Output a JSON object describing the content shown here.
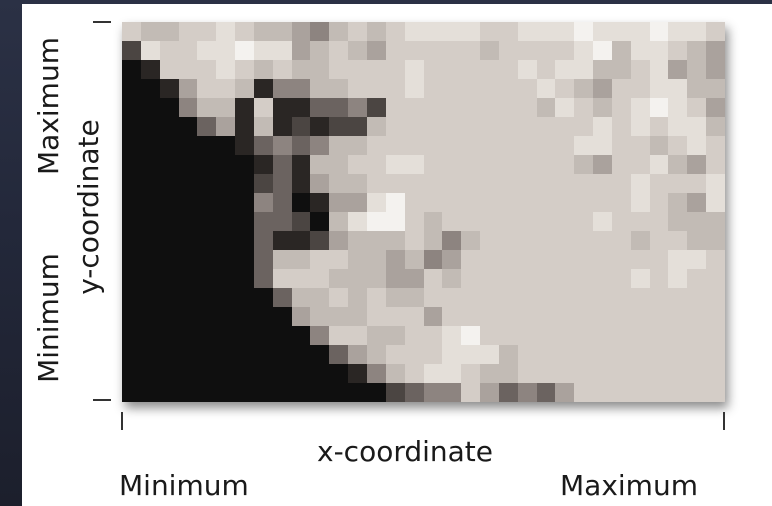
{
  "figure": {
    "x_axis_title": "x-coordinate",
    "x_min_label": "Minimum",
    "x_max_label": "Maximum",
    "y_axis_title": "y-coordinate",
    "y_min_label": "Minimum",
    "y_max_label": "Maximum"
  },
  "raster": {
    "cols": 32,
    "rows": 20,
    "palette": [
      "#0f0f0f",
      "#2a2624",
      "#4b4542",
      "#6b6360",
      "#8d8480",
      "#aaa29d",
      "#c2bbb5",
      "#d4cdc7",
      "#e4dfd9",
      "#f4f2ef"
    ],
    "cells": [
      "76677876654676788887788898889887",
      "28778898856765777776777789688765",
      "01777876766777787777787886678565",
      "00157761446677787777778765778866",
      "00046617113342777777776876789875",
      "00003516121226777777777778787886",
      "00000013434667777777777788776787",
      "00000001316677887777777765778657",
      "00000002315667777777777777787778",
      "00000004301558977777777777787658",
      "00000003320689976777777778777666",
      "00000003112566676467777777767766",
      "00000003667766564577777777777887",
      "00000003777666557677777777787877",
      "00000000366767667777777777777777",
      "00000000056667775777777777777777",
      "00000000004776677897777777777777",
      "00000000000356777888677777777777",
      "00000000000014678876677777777777",
      "00000000000000234475343577777777"
    ]
  }
}
